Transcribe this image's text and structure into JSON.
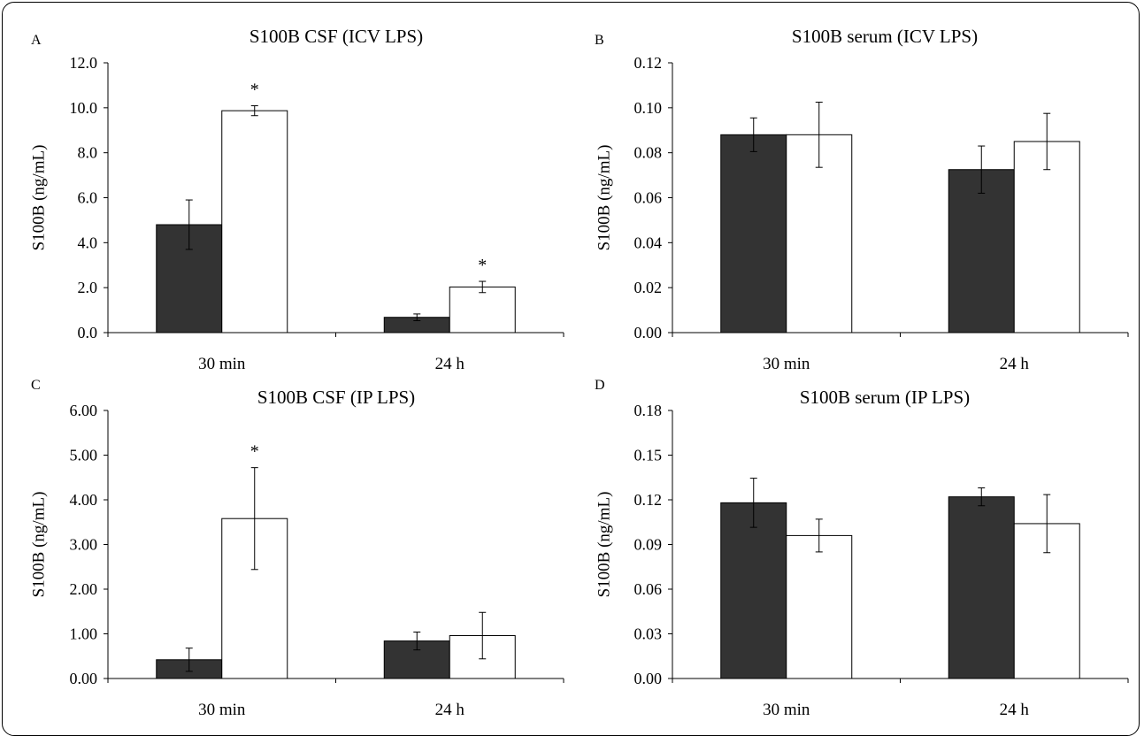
{
  "chart_data": [
    {
      "panel": "A",
      "type": "bar",
      "title": "S100B CSF (ICV LPS)",
      "ylabel": "S100B (ng/mL)",
      "ylim": [
        0,
        12
      ],
      "yticks": [
        "0.0",
        "2.0",
        "4.0",
        "6.0",
        "8.0",
        "10.0",
        "12.0"
      ],
      "categories": [
        "30 min",
        "24 h"
      ],
      "series": [
        {
          "fill": "#333333",
          "values": [
            4.8,
            0.68
          ],
          "errors": [
            1.1,
            0.15
          ],
          "significant": [
            false,
            false
          ]
        },
        {
          "fill": "#ffffff",
          "values": [
            9.87,
            2.03
          ],
          "errors": [
            0.22,
            0.25
          ],
          "significant": [
            true,
            true
          ]
        }
      ],
      "significance_marker": "*"
    },
    {
      "panel": "B",
      "type": "bar",
      "title": "S100B serum (ICV LPS)",
      "ylabel": "S100B (ng/mL)",
      "ylim": [
        0,
        0.12
      ],
      "yticks": [
        "0.00",
        "0.02",
        "0.04",
        "0.06",
        "0.08",
        "0.10",
        "0.12"
      ],
      "categories": [
        "30 min",
        "24 h"
      ],
      "series": [
        {
          "fill": "#333333",
          "values": [
            0.088,
            0.0725
          ],
          "errors": [
            0.0075,
            0.0105
          ],
          "significant": [
            false,
            false
          ]
        },
        {
          "fill": "#ffffff",
          "values": [
            0.088,
            0.085
          ],
          "errors": [
            0.0145,
            0.0125
          ],
          "significant": [
            false,
            false
          ]
        }
      ],
      "significance_marker": "*"
    },
    {
      "panel": "C",
      "type": "bar",
      "title": "S100B CSF (IP LPS)",
      "ylabel": "S100B (ng/mL)",
      "ylim": [
        0,
        6
      ],
      "yticks": [
        "0.00",
        "1.00",
        "2.00",
        "3.00",
        "4.00",
        "5.00",
        "6.00"
      ],
      "categories": [
        "30 min",
        "24 h"
      ],
      "series": [
        {
          "fill": "#333333",
          "values": [
            0.42,
            0.84
          ],
          "errors": [
            0.26,
            0.2
          ],
          "significant": [
            false,
            false
          ]
        },
        {
          "fill": "#ffffff",
          "values": [
            3.58,
            0.96
          ],
          "errors": [
            1.14,
            0.52
          ],
          "significant": [
            true,
            false
          ]
        }
      ],
      "significance_marker": "*"
    },
    {
      "panel": "D",
      "type": "bar",
      "title": "S100B serum (IP LPS)",
      "ylabel": "S100B (ng/mL)",
      "ylim": [
        0,
        0.18
      ],
      "yticks": [
        "0.00",
        "0.03",
        "0.06",
        "0.09",
        "0.12",
        "0.15",
        "0.18"
      ],
      "categories": [
        "30 min",
        "24 h"
      ],
      "series": [
        {
          "fill": "#333333",
          "values": [
            0.118,
            0.122
          ],
          "errors": [
            0.0165,
            0.006
          ],
          "significant": [
            false,
            false
          ]
        },
        {
          "fill": "#ffffff",
          "values": [
            0.096,
            0.104
          ],
          "errors": [
            0.011,
            0.0195
          ],
          "significant": [
            false,
            false
          ]
        }
      ],
      "significance_marker": "*"
    }
  ]
}
